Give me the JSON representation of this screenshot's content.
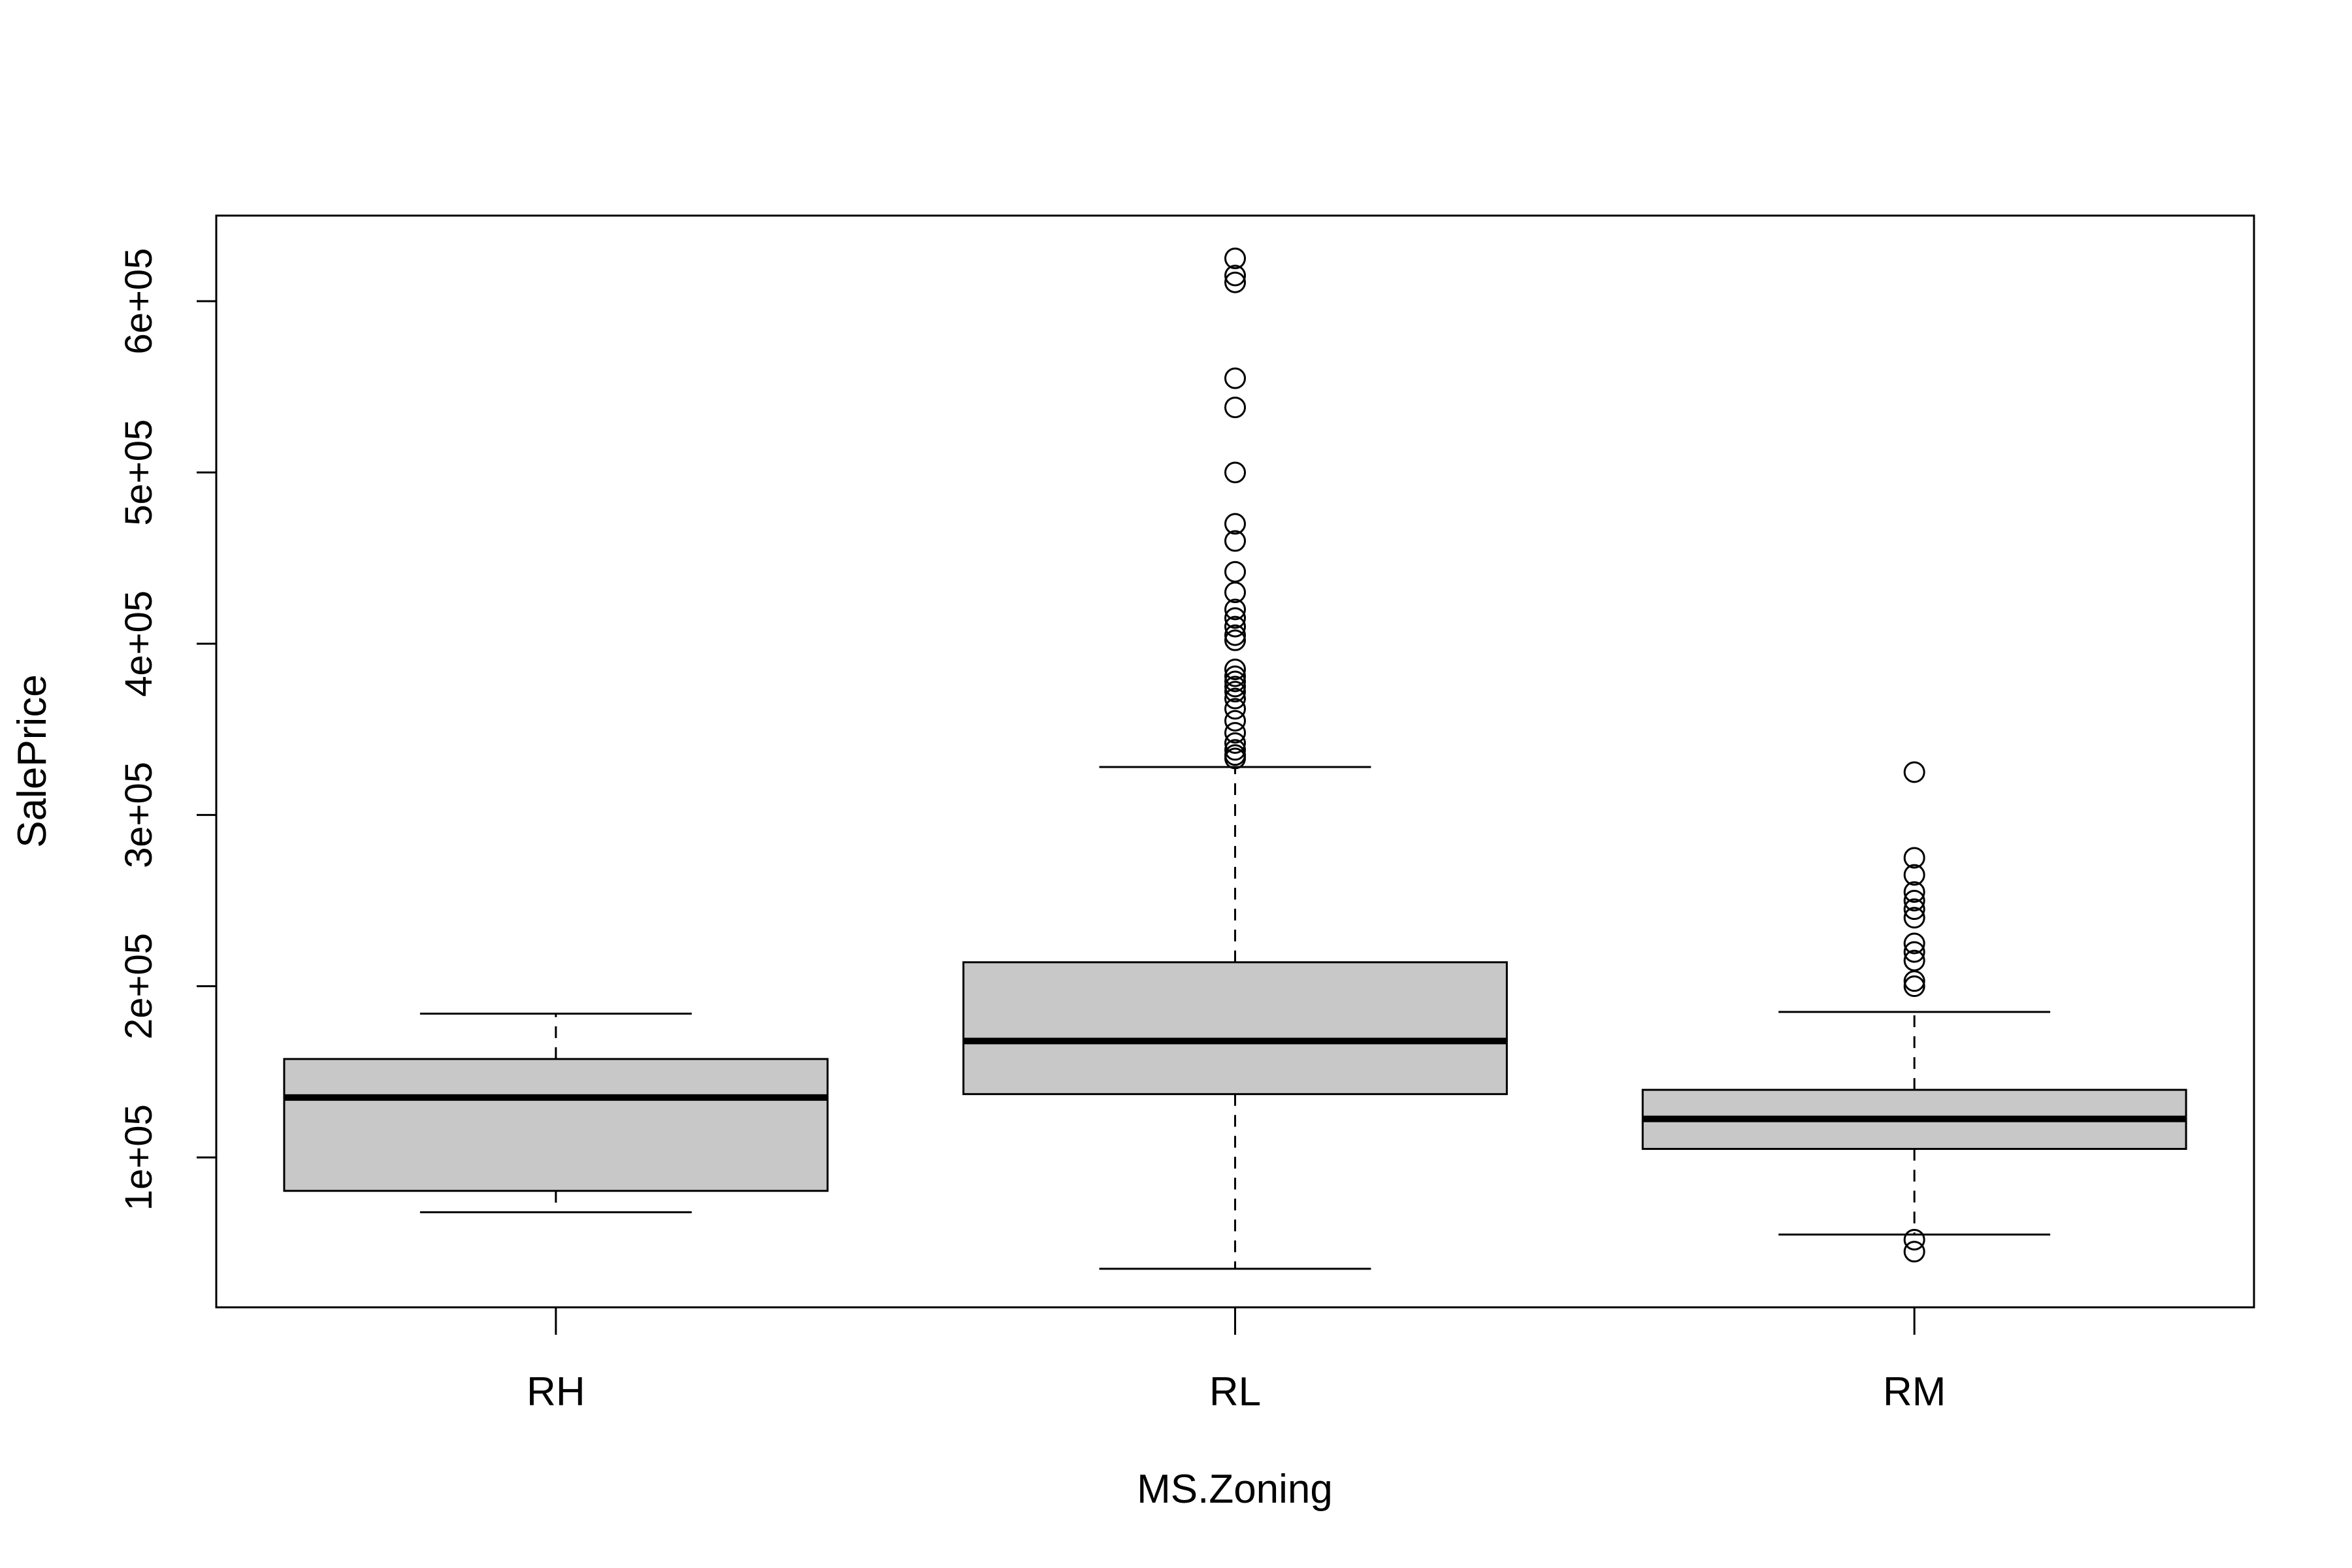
{
  "chart_data": {
    "type": "boxplot",
    "title": "",
    "xlabel": "MS.Zoning",
    "ylabel": "SalePrice",
    "ylim": [
      12500,
      650000
    ],
    "yticks": [
      100000,
      200000,
      300000,
      400000,
      500000,
      600000
    ],
    "ytick_labels": [
      "1e+05",
      "2e+05",
      "3e+05",
      "4e+05",
      "5e+05",
      "6e+05"
    ],
    "categories": [
      "RH",
      "RL",
      "RM"
    ],
    "box_color": "#c8c8c8",
    "boxes": [
      {
        "name": "RH",
        "whisker_low": 68000,
        "q1": 80500,
        "median": 135000,
        "q3": 157500,
        "whisker_high": 184000,
        "outliers": []
      },
      {
        "name": "RL",
        "whisker_low": 35000,
        "q1": 137000,
        "median": 168000,
        "q3": 214000,
        "whisker_high": 328000,
        "outliers": [
          625000,
          615000,
          611000,
          555000,
          538000,
          500000,
          470000,
          460000,
          442000,
          430000,
          420000,
          415000,
          410000,
          405000,
          402000,
          385000,
          381000,
          378000,
          375000,
          372000,
          368000,
          362000,
          355000,
          348000,
          342000,
          338000,
          335000,
          333000
        ]
      },
      {
        "name": "RM",
        "whisker_low": 55000,
        "q1": 105000,
        "median": 122500,
        "q3": 139500,
        "whisker_high": 185000,
        "outliers": [
          325000,
          275000,
          265000,
          255000,
          250000,
          245000,
          240000,
          225000,
          220000,
          215000,
          203000,
          200000,
          52000,
          45000
        ]
      }
    ]
  }
}
